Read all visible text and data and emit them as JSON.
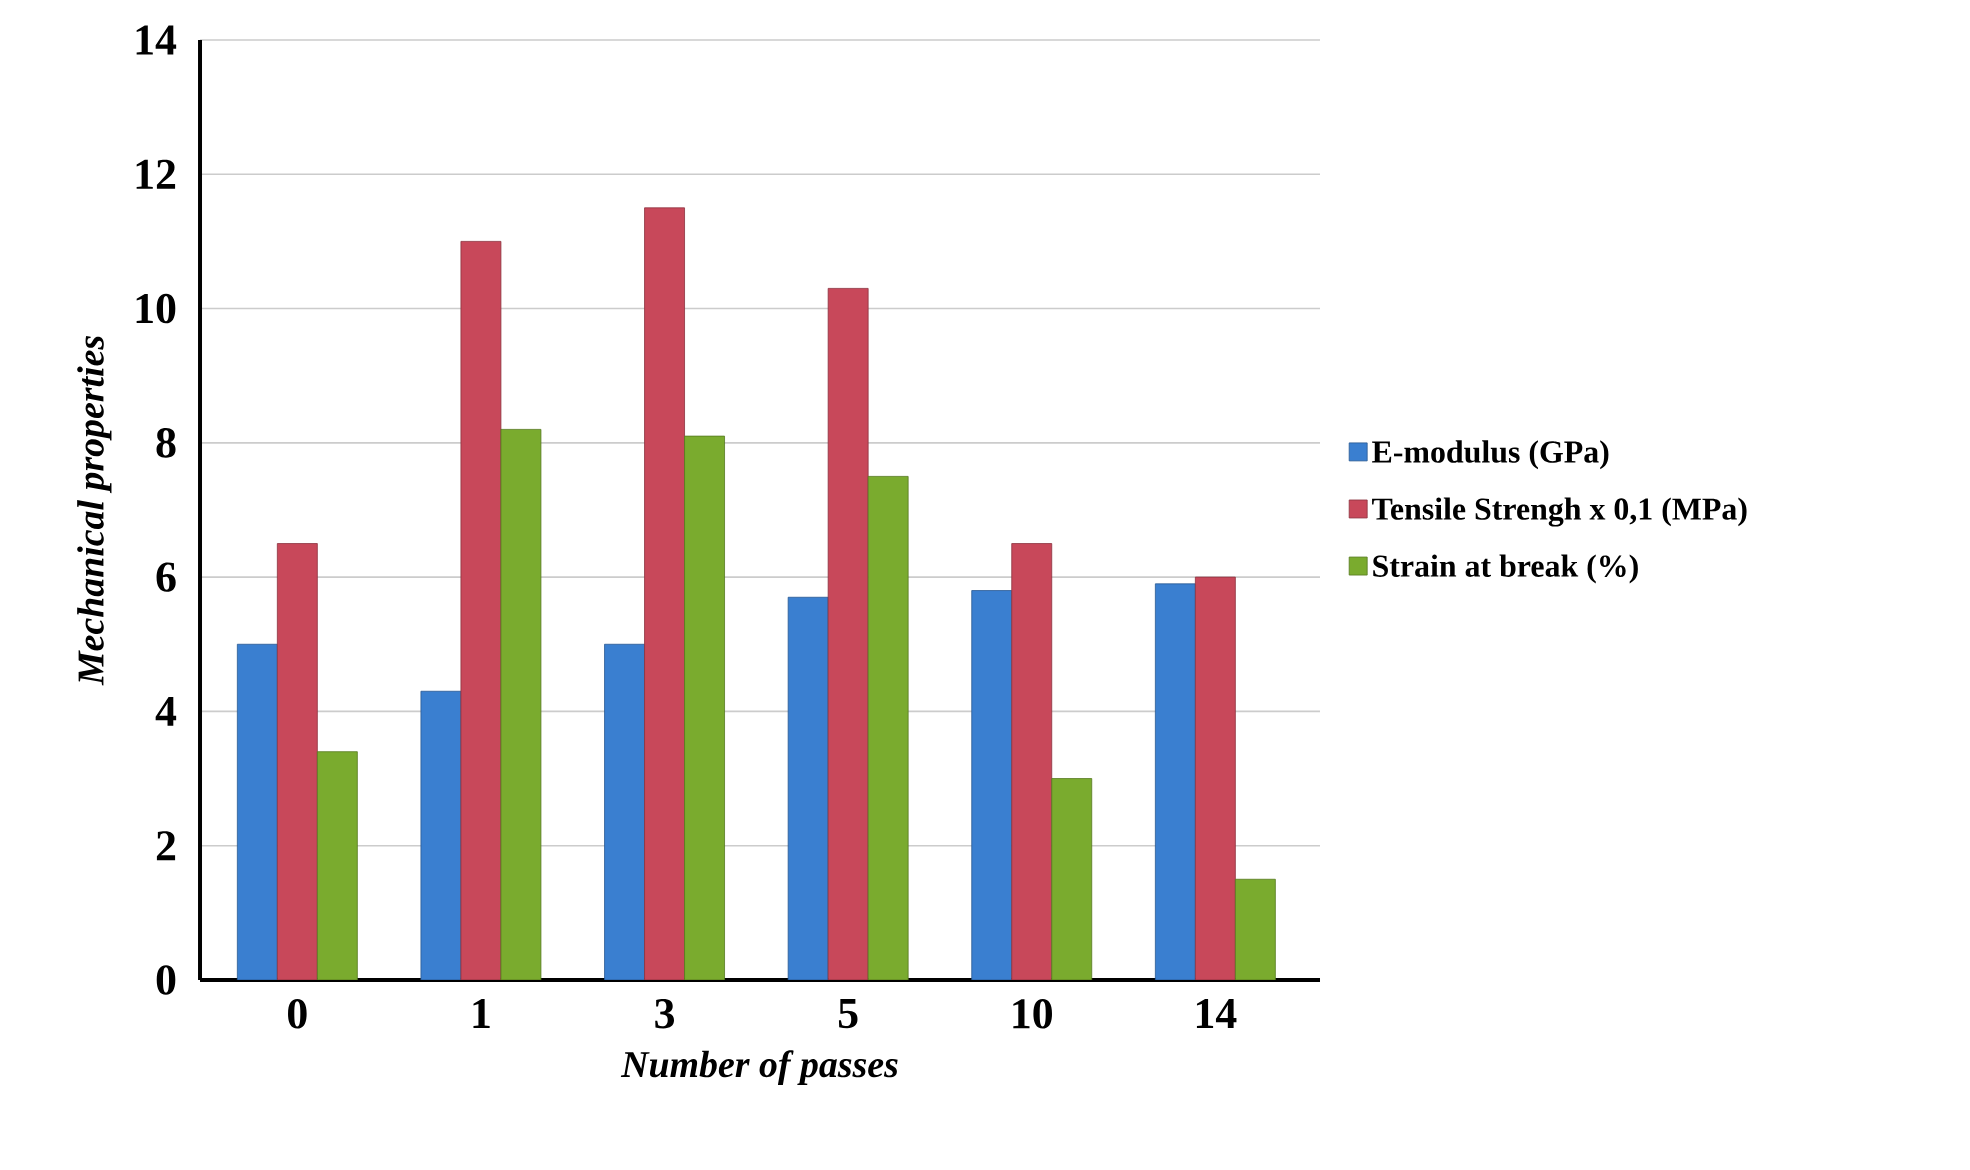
{
  "chart_data": {
    "type": "bar",
    "xlabel": "Number of passes",
    "ylabel": "Mechanical properties",
    "categories": [
      "0",
      "1",
      "3",
      "5",
      "10",
      "14"
    ],
    "series": [
      {
        "name": "E-modulus (GPa)",
        "color": "#3a7fd0",
        "values": [
          5.0,
          4.3,
          5.0,
          5.7,
          5.8,
          5.9
        ]
      },
      {
        "name": "Tensile Strengh x 0,1 (MPa)",
        "color": "#c8485a",
        "values": [
          6.5,
          11.0,
          11.5,
          10.3,
          6.5,
          6.0
        ]
      },
      {
        "name": "Strain at break (%)",
        "color": "#7aab2e",
        "values": [
          3.4,
          8.2,
          8.1,
          7.5,
          3.0,
          1.5
        ]
      }
    ],
    "ylim": [
      0,
      14
    ],
    "yticks": [
      0,
      2,
      4,
      6,
      8,
      10,
      12,
      14
    ],
    "grid": "y",
    "legend": "right"
  }
}
